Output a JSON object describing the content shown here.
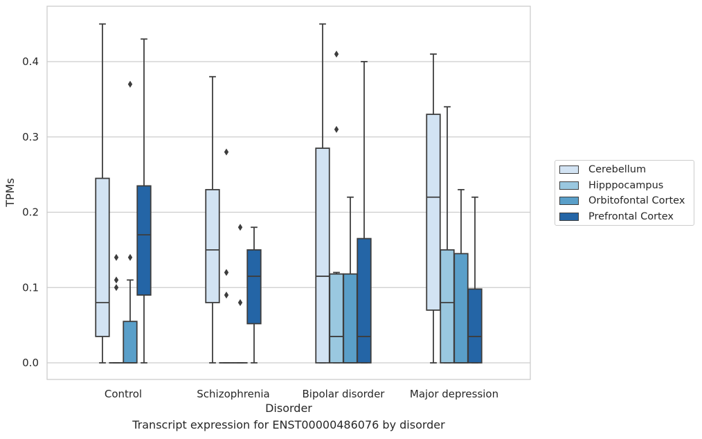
{
  "chart_data": {
    "type": "boxplot",
    "title": "Transcript expression for ENST00000486076 by disorder",
    "xlabel": "Disorder",
    "ylabel": "TPMs",
    "ylim": [
      -0.022,
      0.475
    ],
    "yticks": [
      0.0,
      0.1,
      0.2,
      0.3,
      0.4
    ],
    "ytick_labels": [
      "0.0",
      "0.1",
      "0.2",
      "0.3",
      "0.4"
    ],
    "grid": "horizontal",
    "legend_position": "right",
    "categories": [
      "Control",
      "Schizophrenia",
      "Bipolar disorder",
      "Major depression"
    ],
    "series": [
      {
        "name": "Cerebellum",
        "color": "#d2e3f3",
        "boxes": [
          {
            "whislo": 0.0,
            "q1": 0.035,
            "med": 0.08,
            "q3": 0.245,
            "whishi": 0.45,
            "fliers": []
          },
          {
            "whislo": 0.0,
            "q1": 0.08,
            "med": 0.15,
            "q3": 0.23,
            "whishi": 0.38,
            "fliers": []
          },
          {
            "whislo": 0.0,
            "q1": 0.0,
            "med": 0.115,
            "q3": 0.285,
            "whishi": 0.45,
            "fliers": []
          },
          {
            "whislo": 0.0,
            "q1": 0.07,
            "med": 0.22,
            "q3": 0.33,
            "whishi": 0.41,
            "fliers": []
          }
        ]
      },
      {
        "name": "Hipppocampus",
        "color": "#9ac8e0",
        "boxes": [
          {
            "whislo": 0.0,
            "q1": 0.0,
            "med": 0.0,
            "q3": 0.0,
            "whishi": 0.0,
            "fliers": [
              0.1,
              0.11,
              0.14
            ]
          },
          {
            "whislo": 0.0,
            "q1": 0.0,
            "med": 0.0,
            "q3": 0.0,
            "whishi": 0.0,
            "fliers": [
              0.09,
              0.12,
              0.28
            ]
          },
          {
            "whislo": 0.0,
            "q1": 0.0,
            "med": 0.035,
            "q3": 0.118,
            "whishi": 0.12,
            "fliers": [
              0.31,
              0.41
            ]
          },
          {
            "whislo": 0.0,
            "q1": 0.0,
            "med": 0.08,
            "q3": 0.15,
            "whishi": 0.34,
            "fliers": []
          }
        ]
      },
      {
        "name": "Orbitofontal Cortex",
        "color": "#5a9fc9",
        "boxes": [
          {
            "whislo": 0.0,
            "q1": 0.0,
            "med": 0.0,
            "q3": 0.055,
            "whishi": 0.11,
            "fliers": [
              0.14,
              0.37
            ]
          },
          {
            "whislo": 0.0,
            "q1": 0.0,
            "med": 0.0,
            "q3": 0.0,
            "whishi": 0.0,
            "fliers": [
              0.08,
              0.18
            ]
          },
          {
            "whislo": 0.0,
            "q1": 0.0,
            "med": 0.0,
            "q3": 0.118,
            "whishi": 0.22,
            "fliers": []
          },
          {
            "whislo": 0.0,
            "q1": 0.0,
            "med": 0.0,
            "q3": 0.145,
            "whishi": 0.23,
            "fliers": []
          }
        ]
      },
      {
        "name": "Prefrontal Cortex",
        "color": "#2465a6",
        "boxes": [
          {
            "whislo": 0.0,
            "q1": 0.09,
            "med": 0.17,
            "q3": 0.235,
            "whishi": 0.43,
            "fliers": []
          },
          {
            "whislo": 0.0,
            "q1": 0.052,
            "med": 0.115,
            "q3": 0.15,
            "whishi": 0.18,
            "fliers": []
          },
          {
            "whislo": 0.0,
            "q1": 0.0,
            "med": 0.035,
            "q3": 0.165,
            "whishi": 0.4,
            "fliers": []
          },
          {
            "whislo": 0.0,
            "q1": 0.0,
            "med": 0.035,
            "q3": 0.098,
            "whishi": 0.22,
            "fliers": []
          }
        ]
      }
    ]
  }
}
